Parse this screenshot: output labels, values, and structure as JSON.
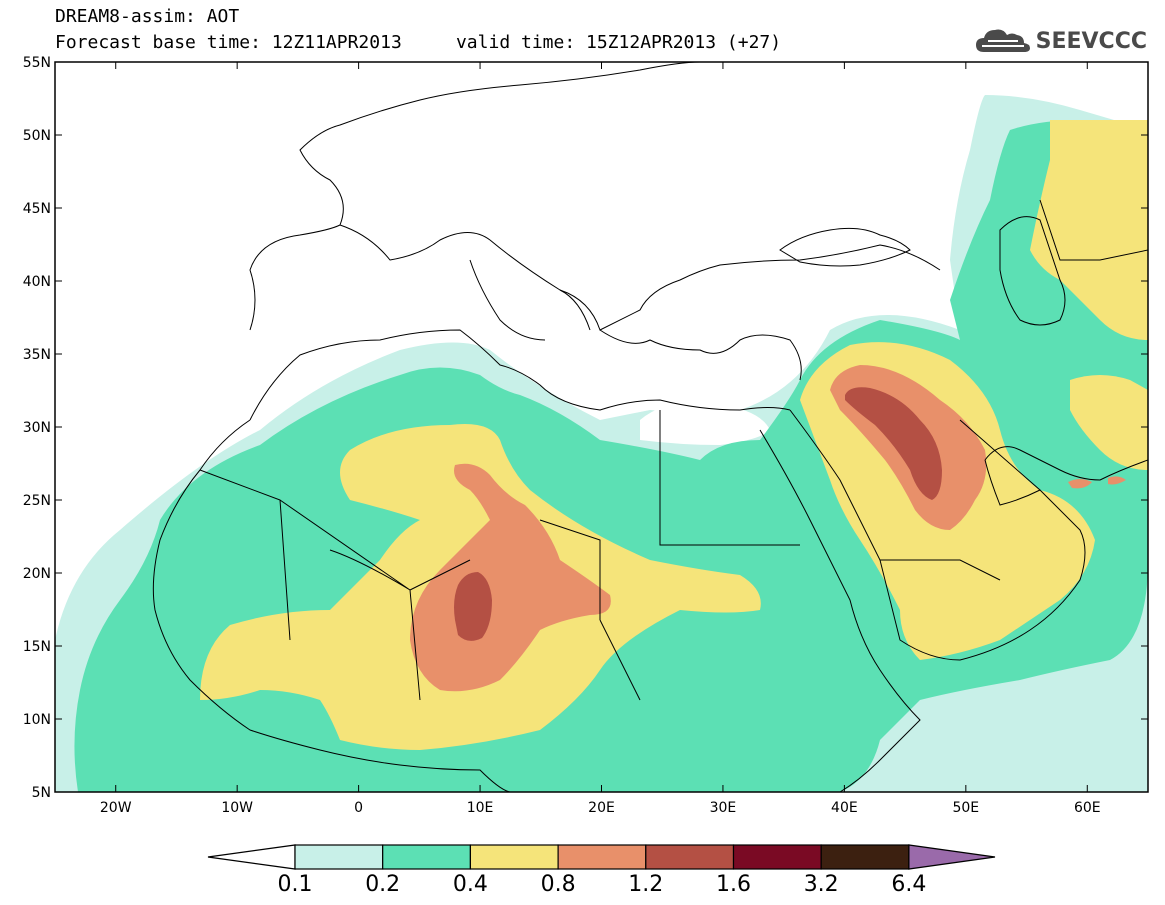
{
  "title_line1": "DREAM8-assim: AOT",
  "title_line2": "Forecast base time: 12Z11APR2013     valid time: 15Z12APR2013 (+27)",
  "brand": {
    "text": "SEEVCCC",
    "icon": "cloud-logo-icon"
  },
  "map": {
    "lon_range": [
      -25,
      65
    ],
    "lat_range": [
      5,
      55
    ],
    "lat_ticks": [
      "5N",
      "10N",
      "15N",
      "20N",
      "25N",
      "30N",
      "35N",
      "40N",
      "45N",
      "50N",
      "55N"
    ],
    "lon_ticks": [
      "20W",
      "10W",
      "0",
      "10E",
      "20E",
      "30E",
      "40E",
      "50E",
      "60E"
    ],
    "lat_tick_values": [
      5,
      10,
      15,
      20,
      25,
      30,
      35,
      40,
      45,
      50,
      55
    ],
    "lon_tick_values": [
      -20,
      -10,
      0,
      10,
      20,
      30,
      40,
      50,
      60
    ]
  },
  "colorbar": {
    "labels": [
      "0.1",
      "0.2",
      "0.4",
      "0.8",
      "1.2",
      "1.6",
      "3.2",
      "6.4"
    ],
    "colors": [
      "#ffffff",
      "#c8f0e8",
      "#5ce0b4",
      "#f5e47a",
      "#e8906a",
      "#b45044",
      "#7a0a24",
      "#3c2010",
      "#9a6aaa"
    ]
  }
}
